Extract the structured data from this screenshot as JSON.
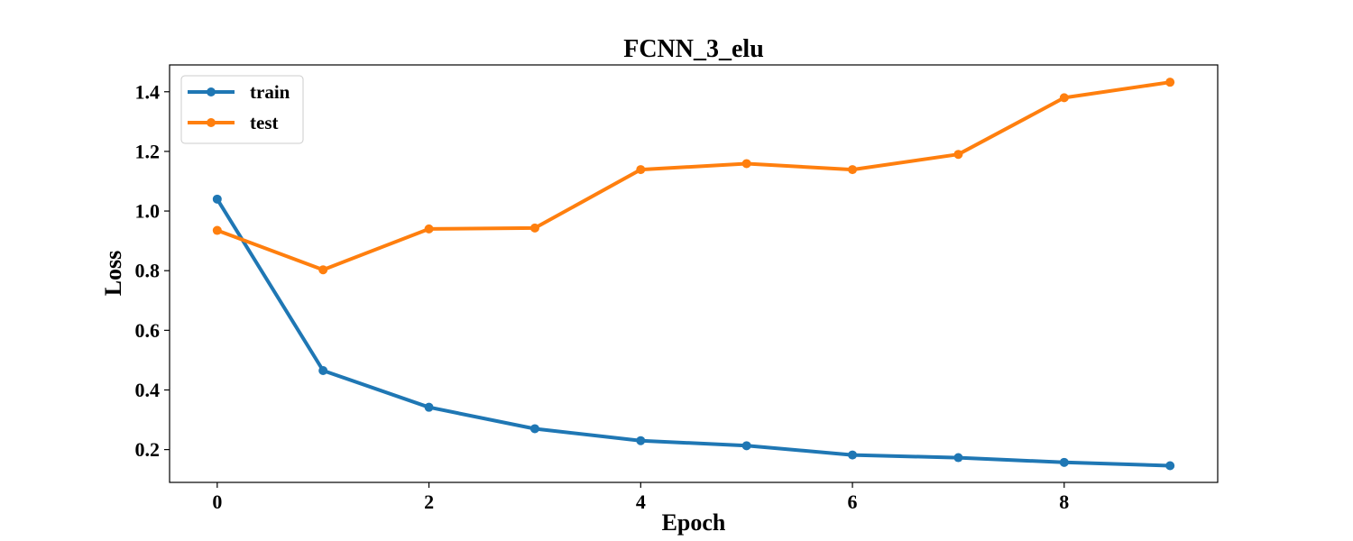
{
  "chart_data": {
    "type": "line",
    "title": "FCNN_3_elu",
    "xlabel": "Epoch",
    "ylabel": "Loss",
    "x": [
      0,
      1,
      2,
      3,
      4,
      5,
      6,
      7,
      8,
      9
    ],
    "xlim": [
      -0.45,
      9.45
    ],
    "ylim": [
      0.09,
      1.49
    ],
    "xticks": [
      0,
      2,
      4,
      6,
      8
    ],
    "yticks": [
      0.2,
      0.4,
      0.6,
      0.8,
      1.0,
      1.2,
      1.4
    ],
    "xtick_labels": [
      "0",
      "2",
      "4",
      "6",
      "8"
    ],
    "ytick_labels": [
      "0.2",
      "0.4",
      "0.6",
      "0.8",
      "1.0",
      "1.2",
      "1.4"
    ],
    "grid": false,
    "legend_position": "top-left",
    "series": [
      {
        "name": "train",
        "color": "#1f77b4",
        "values": [
          1.04,
          0.465,
          0.342,
          0.27,
          0.23,
          0.213,
          0.182,
          0.173,
          0.157,
          0.146
        ]
      },
      {
        "name": "test",
        "color": "#ff7f0e",
        "values": [
          0.935,
          0.803,
          0.94,
          0.943,
          1.139,
          1.159,
          1.139,
          1.19,
          1.38,
          1.432
        ]
      }
    ]
  }
}
